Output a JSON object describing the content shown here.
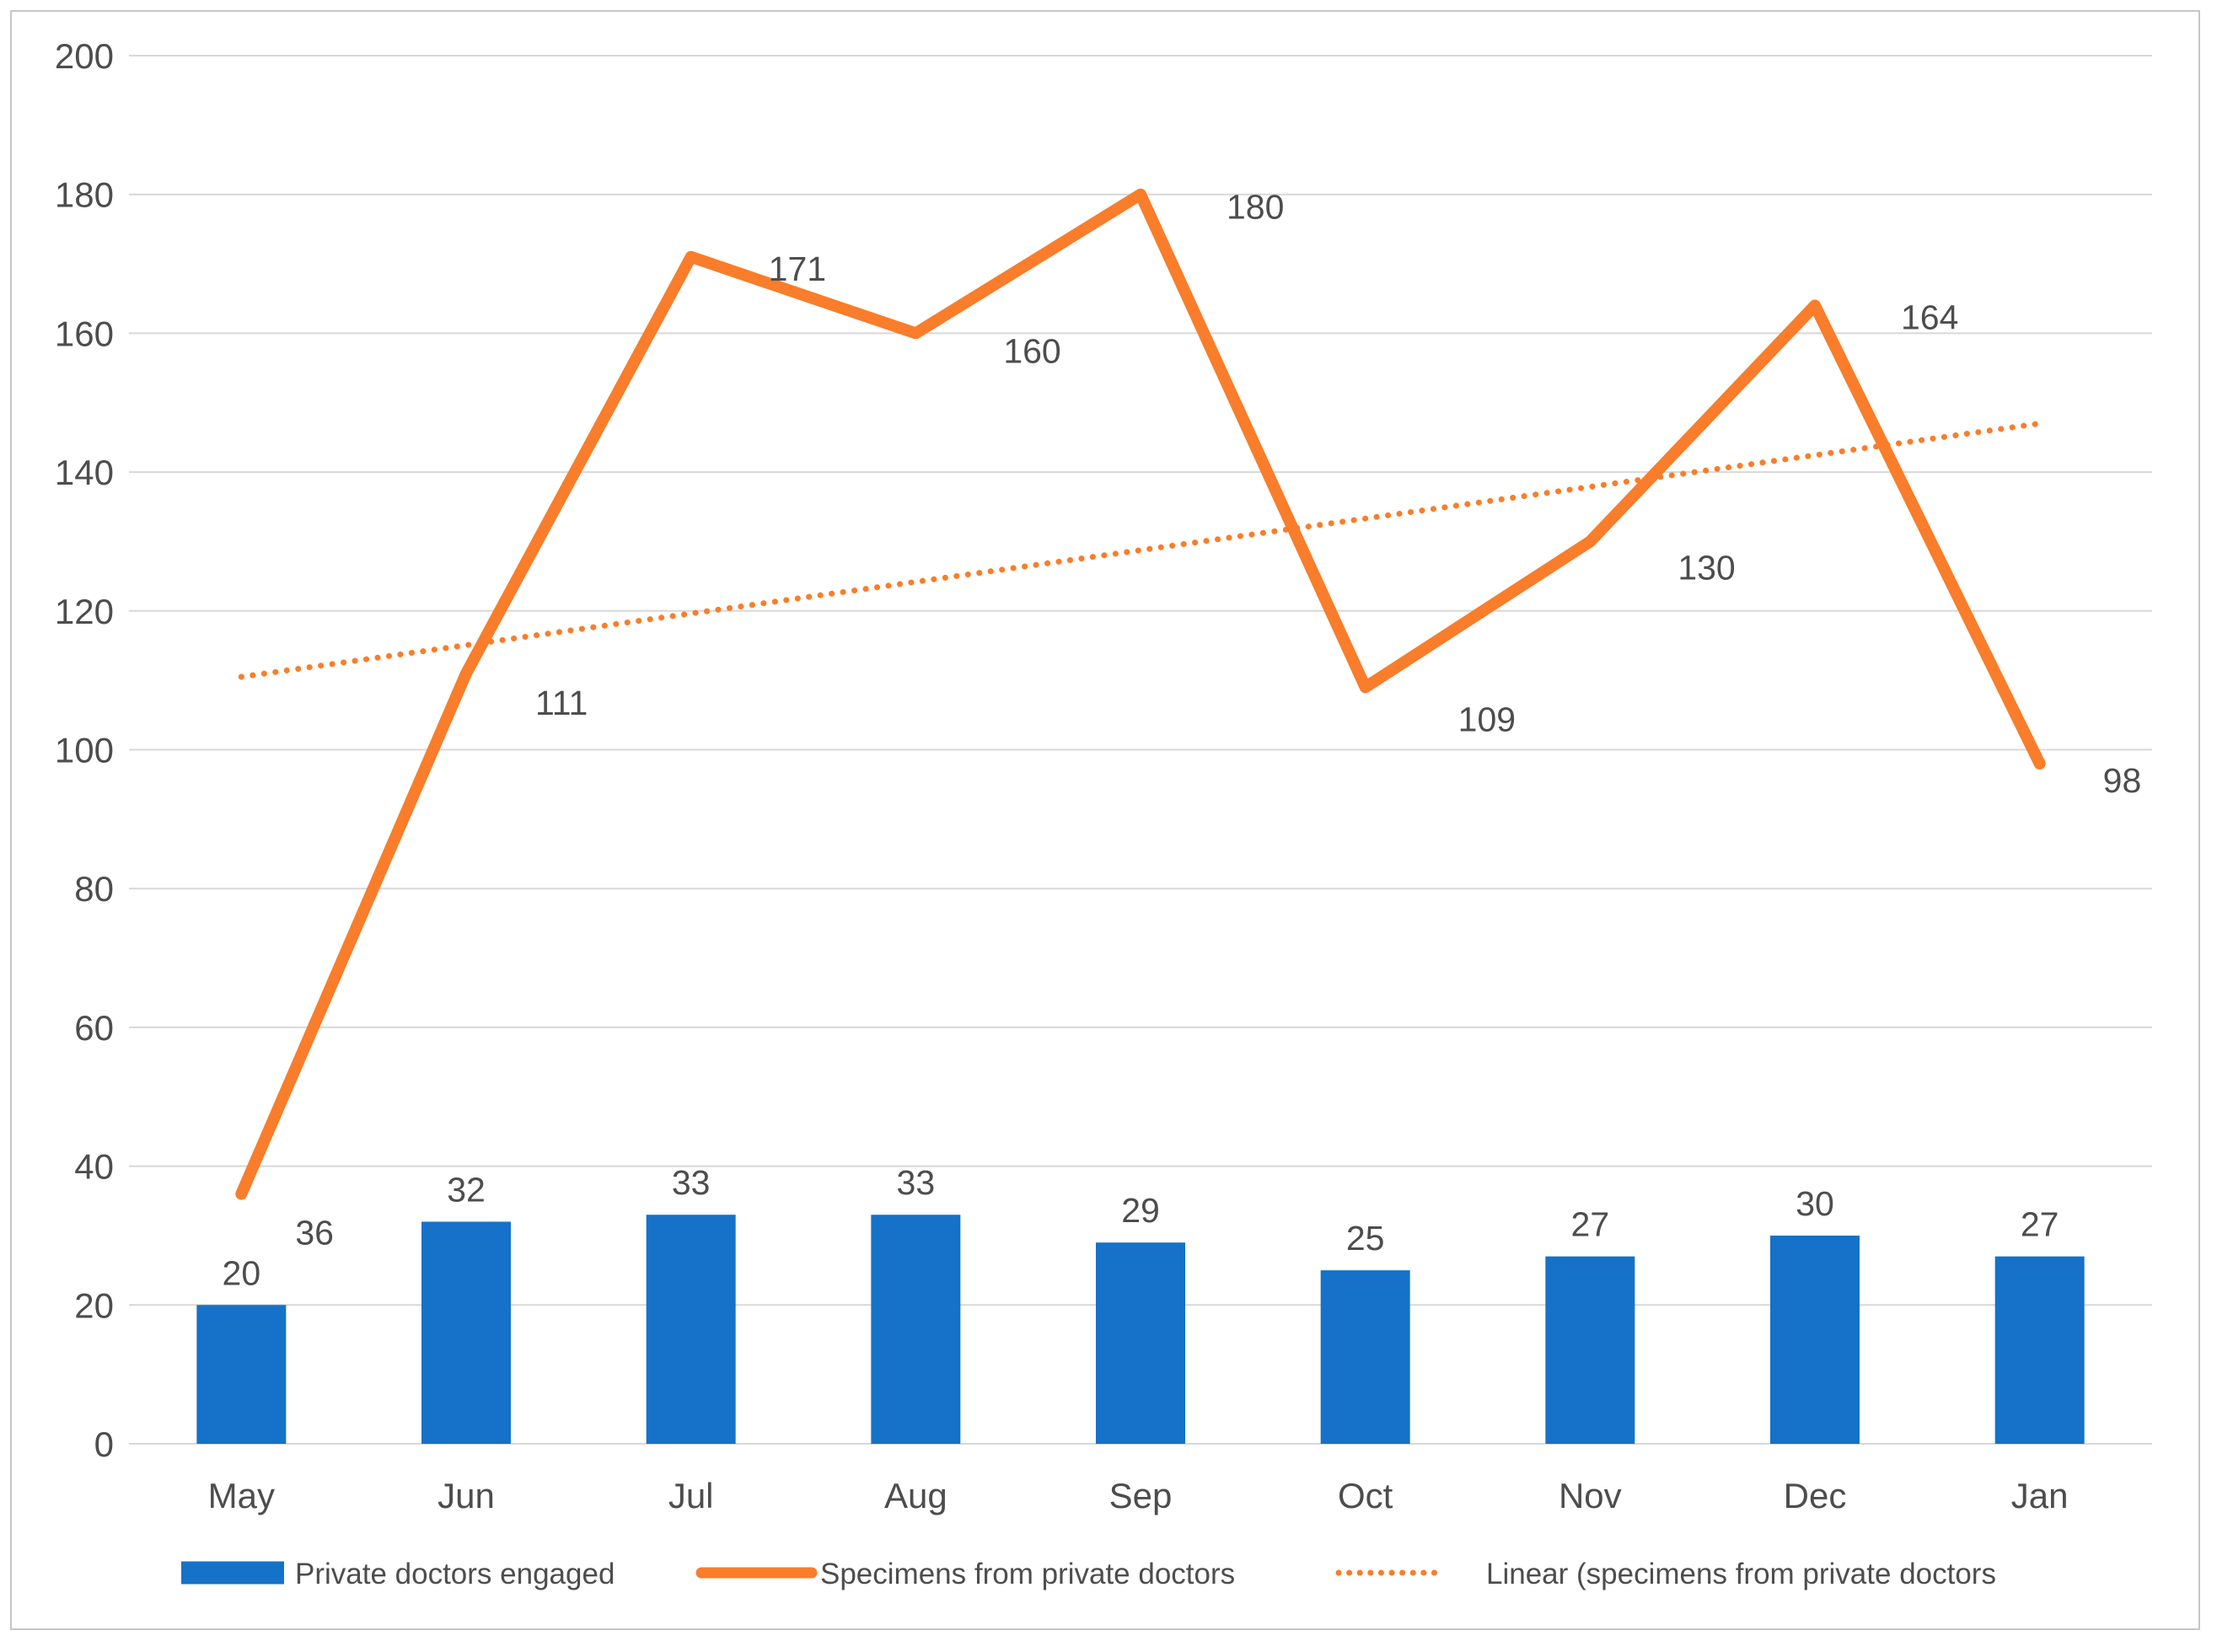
{
  "chart_data": {
    "type": "bar",
    "combo_types": [
      "bar",
      "line",
      "trendline"
    ],
    "title": "",
    "xlabel": "",
    "ylabel": "",
    "categories": [
      "May",
      "Jun",
      "Jul",
      "Aug",
      "Sep",
      "Oct",
      "Nov",
      "Dec",
      "Jan"
    ],
    "series": [
      {
        "name": "Private doctors engaged",
        "chart_type": "bar",
        "color": "#1572C8",
        "values": [
          20,
          32,
          33,
          33,
          29,
          25,
          27,
          30,
          27
        ]
      },
      {
        "name": "Specimens from private doctors",
        "chart_type": "line",
        "color": "#F97D2A",
        "values": [
          36,
          111,
          171,
          160,
          180,
          109,
          130,
          164,
          98
        ]
      },
      {
        "name": "Linear (specimens from private doctors",
        "chart_type": "trendline-dotted",
        "color": "#F97D2A",
        "endpoints": [
          110.5,
          147
        ]
      }
    ],
    "yticks": [
      "0",
      "20",
      "40",
      "60",
      "80",
      "100",
      "120",
      "140",
      "160",
      "180",
      "200"
    ],
    "ylim": [
      0,
      200
    ],
    "ytick_step": 20,
    "grid": true,
    "legend_position": "bottom"
  },
  "colors": {
    "bar": "#1572C8",
    "line": "#F97D2A",
    "grid": "#D8D8D8",
    "border": "#C6C6C6",
    "text": "#4D4D4D",
    "background": "#FFFFFF"
  }
}
